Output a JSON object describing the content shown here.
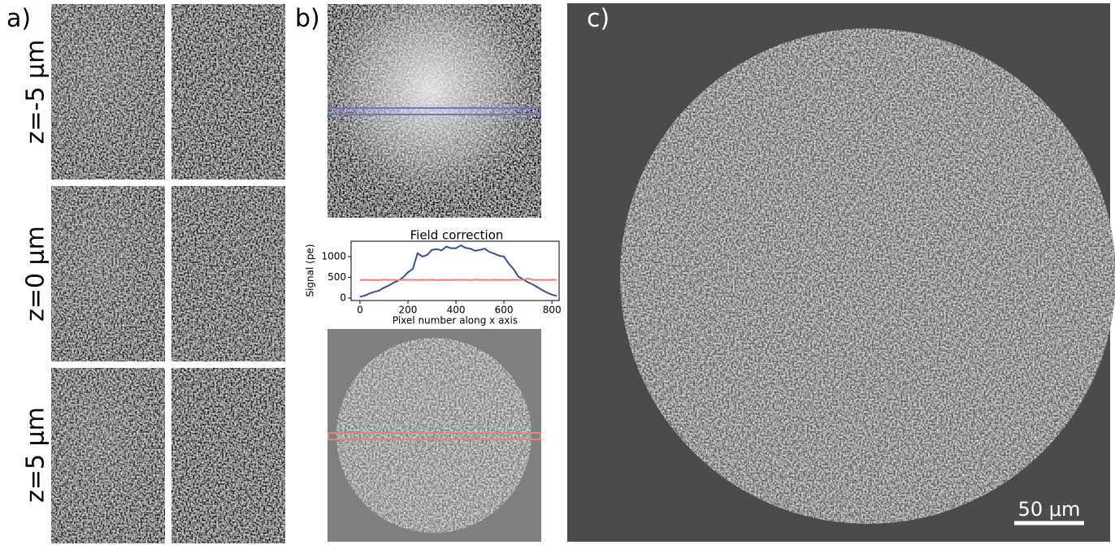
{
  "panel_a": {
    "label": "a)",
    "rows": [
      "z=-5 μm",
      "z=0 μm",
      "z=5 μm"
    ]
  },
  "panel_b": {
    "label": "b)"
  },
  "panel_c": {
    "label": "c)",
    "scale_bar": "50 μm"
  },
  "chart_data": {
    "type": "line",
    "title": "Field correction",
    "ylabel": "Signal (pe)",
    "xlabel": "Pixel number along x axis",
    "x": [
      0,
      20,
      40,
      60,
      80,
      100,
      120,
      140,
      160,
      180,
      200,
      220,
      240,
      260,
      280,
      300,
      320,
      340,
      360,
      380,
      400,
      420,
      440,
      460,
      480,
      500,
      520,
      540,
      560,
      580,
      600,
      620,
      640,
      660,
      680,
      700,
      720,
      740,
      760,
      780,
      800,
      820
    ],
    "series": [
      {
        "color": "#3b4f96",
        "values": [
          30,
          60,
          110,
          150,
          180,
          250,
          300,
          370,
          420,
          500,
          620,
          700,
          1080,
          1000,
          1040,
          1160,
          1180,
          1150,
          1240,
          1200,
          1200,
          1270,
          1210,
          1190,
          1140,
          1160,
          1190,
          1110,
          1070,
          1020,
          1000,
          830,
          700,
          520,
          450,
          380,
          330,
          260,
          190,
          130,
          80,
          50
        ]
      },
      {
        "color": "#e8837a",
        "values": [
          430,
          440,
          435,
          438,
          432,
          445,
          436,
          440,
          433,
          442,
          437,
          441,
          434,
          439,
          436,
          443,
          432,
          440,
          438,
          435,
          441,
          436,
          439,
          433,
          444,
          437,
          440,
          435,
          442,
          436,
          438,
          434,
          441,
          437,
          439,
          470,
          436,
          440,
          438,
          435,
          440,
          438
        ]
      }
    ],
    "xlim": [
      -37,
      830
    ],
    "ylim": [
      -60,
      1370
    ],
    "xticks": [
      0,
      200,
      400,
      600,
      800
    ],
    "yticks": [
      0,
      500,
      1000
    ]
  }
}
